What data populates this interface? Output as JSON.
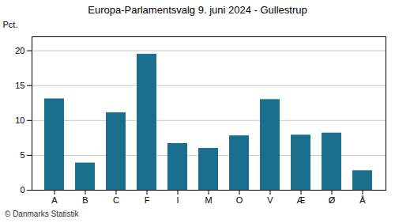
{
  "chart_data": {
    "type": "bar",
    "title": "Europa-Parlamentsvalg 9. juni 2024 - Gullestrup",
    "categories": [
      "A",
      "B",
      "C",
      "F",
      "I",
      "M",
      "O",
      "V",
      "Æ",
      "Ø",
      "Å"
    ],
    "values": [
      13.1,
      3.9,
      11.1,
      19.5,
      6.7,
      6.0,
      7.8,
      13.0,
      7.9,
      8.2,
      2.8
    ],
    "color": "#1a6e8e",
    "ylabel": "Pct.",
    "ylim": [
      0,
      22
    ],
    "yticks": [
      0,
      5,
      10,
      15,
      20
    ],
    "grid": true,
    "footer": "© Danmarks Statistik"
  }
}
